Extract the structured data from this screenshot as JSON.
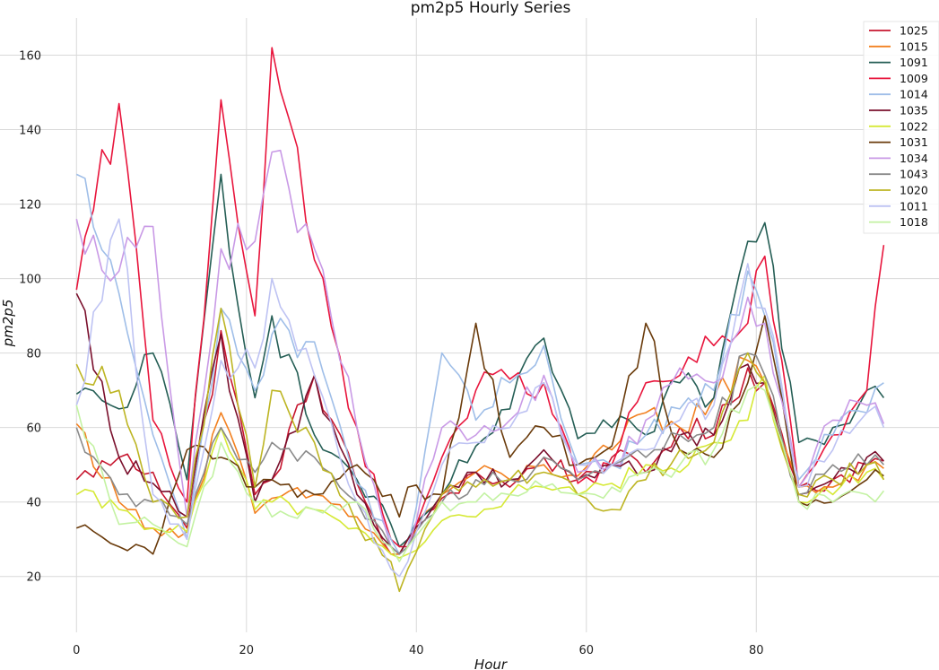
{
  "chart_data": {
    "type": "line",
    "title": "pm2p5 Hourly Series",
    "xlabel": "Hour",
    "ylabel": "pm2p5",
    "xlim": [
      -9,
      101.5
    ],
    "ylim": [
      5,
      170
    ],
    "xticks": [
      0,
      20,
      40,
      60,
      80
    ],
    "yticks": [
      20,
      40,
      60,
      80,
      100,
      120,
      140,
      160
    ],
    "grid": true,
    "legend_position": "top-right",
    "x_anchors": [
      0,
      5,
      9,
      13,
      17,
      21,
      23,
      28,
      33,
      37,
      38,
      39,
      43,
      47,
      51,
      55,
      59,
      63,
      67,
      71,
      75,
      79,
      81,
      85,
      89,
      93,
      95
    ],
    "series": [
      {
        "name": "1025",
        "color": "#c7162f",
        "values": [
          46,
          52,
          48,
          33,
          86,
          42,
          46,
          74,
          45,
          26,
          26,
          30,
          41,
          48,
          44,
          52,
          46,
          52,
          48,
          60,
          58,
          76,
          72,
          44,
          46,
          50,
          51
        ]
      },
      {
        "name": "1015",
        "color": "#f28020",
        "values": [
          61,
          40,
          33,
          32,
          64,
          37,
          41,
          42,
          36,
          26,
          26,
          30,
          42,
          48,
          46,
          50,
          47,
          54,
          64,
          60,
          68,
          78,
          72,
          44,
          44,
          50,
          49
        ]
      },
      {
        "name": "1091",
        "color": "#255e55",
        "values": [
          69,
          65,
          80,
          46,
          128,
          68,
          90,
          58,
          46,
          34,
          28,
          30,
          42,
          55,
          65,
          84,
          57,
          60,
          58,
          72,
          68,
          110,
          115,
          56,
          60,
          70,
          68
        ]
      },
      {
        "name": "1009",
        "color": "#e8153c",
        "values": [
          97,
          147,
          62,
          40,
          148,
          90,
          162,
          105,
          60,
          30,
          28,
          28,
          52,
          70,
          73,
          72,
          45,
          50,
          72,
          74,
          82,
          88,
          106,
          44,
          58,
          70,
          109
        ]
      },
      {
        "name": "1014",
        "color": "#9fbee8",
        "values": [
          128,
          96,
          58,
          30,
          92,
          70,
          85,
          83,
          45,
          30,
          26,
          28,
          80,
          62,
          72,
          82,
          50,
          50,
          58,
          65,
          70,
          102,
          90,
          46,
          58,
          64,
          72
        ]
      },
      {
        "name": "1035",
        "color": "#7a0f2c",
        "values": [
          96,
          52,
          45,
          36,
          85,
          40,
          46,
          74,
          42,
          28,
          26,
          30,
          42,
          48,
          46,
          54,
          46,
          50,
          48,
          58,
          58,
          77,
          72,
          42,
          46,
          52,
          51
        ]
      },
      {
        "name": "1022",
        "color": "#d6e936",
        "values": [
          42,
          38,
          33,
          32,
          60,
          38,
          40,
          38,
          33,
          26,
          25,
          26,
          35,
          36,
          42,
          44,
          42,
          45,
          50,
          48,
          56,
          62,
          74,
          40,
          42,
          48,
          46
        ]
      },
      {
        "name": "1031",
        "color": "#6a3b0b",
        "values": [
          33,
          28,
          26,
          54,
          52,
          44,
          46,
          42,
          50,
          42,
          36,
          44,
          42,
          88,
          52,
          60,
          50,
          55,
          88,
          54,
          52,
          72,
          90,
          40,
          40,
          46,
          47
        ]
      },
      {
        "name": "1034",
        "color": "#c99ae6",
        "values": [
          116,
          102,
          114,
          36,
          108,
          110,
          134,
          108,
          60,
          28,
          26,
          28,
          60,
          58,
          62,
          74,
          48,
          50,
          62,
          76,
          72,
          95,
          88,
          44,
          62,
          66,
          61
        ]
      },
      {
        "name": "1043",
        "color": "#8a8a8a",
        "values": [
          60,
          42,
          40,
          34,
          60,
          48,
          56,
          52,
          40,
          28,
          26,
          28,
          40,
          46,
          46,
          52,
          46,
          50,
          52,
          58,
          60,
          80,
          74,
          42,
          50,
          50,
          50
        ]
      },
      {
        "name": "1020",
        "color": "#bdb523",
        "values": [
          77,
          70,
          40,
          36,
          92,
          44,
          70,
          56,
          34,
          24,
          16,
          22,
          42,
          44,
          46,
          48,
          42,
          38,
          46,
          54,
          56,
          80,
          72,
          42,
          46,
          50,
          46
        ]
      },
      {
        "name": "1011",
        "color": "#bec3f3",
        "values": [
          66,
          116,
          42,
          30,
          78,
          76,
          100,
          74,
          40,
          22,
          20,
          24,
          50,
          56,
          60,
          72,
          50,
          50,
          54,
          62,
          66,
          104,
          92,
          44,
          54,
          64,
          60
        ]
      },
      {
        "name": "1018",
        "color": "#c3f2a2",
        "values": [
          66,
          34,
          34,
          28,
          56,
          40,
          36,
          38,
          40,
          28,
          24,
          28,
          40,
          40,
          42,
          44,
          42,
          44,
          48,
          50,
          54,
          70,
          70,
          40,
          40,
          42,
          43
        ]
      }
    ]
  }
}
